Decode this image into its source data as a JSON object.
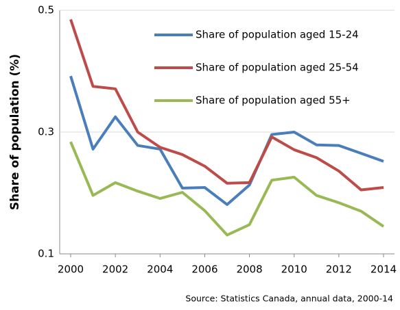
{
  "chart_data": {
    "type": "line",
    "y_label": "Share of population (%)",
    "source": "Source: Statistics Canada, annual data, 2000-14",
    "x": [
      2000,
      2001,
      2002,
      2003,
      2004,
      2005,
      2006,
      2007,
      2008,
      2009,
      2010,
      2011,
      2012,
      2013,
      2014
    ],
    "xlim": [
      2000,
      2014
    ],
    "xticks": [
      2000,
      2002,
      2004,
      2006,
      2008,
      2010,
      2012,
      2014
    ],
    "ylim": [
      0.1,
      0.5
    ],
    "yticks": [
      0.1,
      0.3,
      0.5
    ],
    "grid": true,
    "legend": "upper right",
    "series": [
      {
        "name": "Share of population aged 15-24",
        "color": "#4a7ebb",
        "values": [
          0.392,
          0.272,
          0.325,
          0.278,
          0.272,
          0.208,
          0.209,
          0.181,
          0.213,
          0.296,
          0.3,
          0.279,
          0.278,
          0.265,
          0.252
        ]
      },
      {
        "name": "Share of population aged 25-54",
        "color": "#be4b48",
        "values": [
          0.485,
          0.375,
          0.371,
          0.3,
          0.275,
          0.263,
          0.244,
          0.216,
          0.217,
          0.292,
          0.271,
          0.258,
          0.236,
          0.205,
          0.209
        ]
      },
      {
        "name": "Share of population aged 55+",
        "color": "#98b954",
        "values": [
          0.284,
          0.196,
          0.217,
          0.203,
          0.191,
          0.201,
          0.171,
          0.131,
          0.148,
          0.221,
          0.226,
          0.196,
          0.184,
          0.17,
          0.145
        ]
      }
    ]
  }
}
